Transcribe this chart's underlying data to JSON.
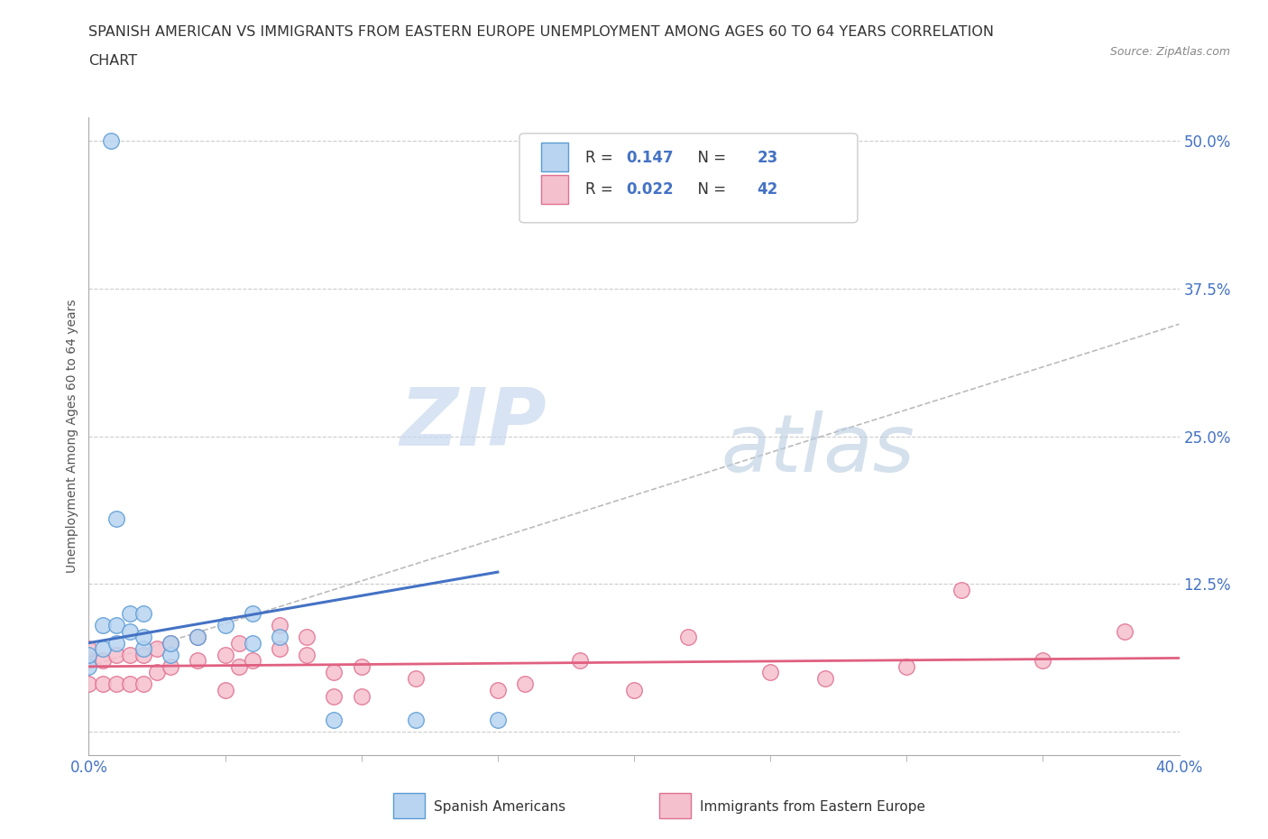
{
  "title_line1": "SPANISH AMERICAN VS IMMIGRANTS FROM EASTERN EUROPE UNEMPLOYMENT AMONG AGES 60 TO 64 YEARS CORRELATION",
  "title_line2": "CHART",
  "source": "Source: ZipAtlas.com",
  "ylabel": "Unemployment Among Ages 60 to 64 years",
  "xlim": [
    0.0,
    0.4
  ],
  "ylim": [
    -0.02,
    0.52
  ],
  "xticklabels": [
    "0.0%",
    "40.0%"
  ],
  "ytick_values": [
    0.0,
    0.125,
    0.25,
    0.375,
    0.5
  ],
  "ytick_labels": [
    "",
    "12.5%",
    "25.0%",
    "37.5%",
    "50.0%"
  ],
  "blue_R": "0.147",
  "blue_N": "23",
  "pink_R": "0.022",
  "pink_N": "42",
  "blue_fill": "#b8d4f0",
  "blue_edge": "#5b9bd5",
  "pink_fill": "#f5c0ce",
  "pink_edge": "#e07090",
  "blue_line": "#4472c4",
  "pink_line": "#e06080",
  "dash_line": "#aaaaaa",
  "grid_color": "#cccccc",
  "watermark_zip": "ZIP",
  "watermark_atlas": "atlas",
  "blue_scatter_x": [
    0.008,
    0.01,
    0.0,
    0.0,
    0.005,
    0.005,
    0.01,
    0.01,
    0.015,
    0.015,
    0.02,
    0.02,
    0.02,
    0.03,
    0.03,
    0.04,
    0.05,
    0.06,
    0.06,
    0.07,
    0.09,
    0.12,
    0.15
  ],
  "blue_scatter_y": [
    0.5,
    0.18,
    0.055,
    0.065,
    0.07,
    0.09,
    0.075,
    0.09,
    0.085,
    0.1,
    0.07,
    0.08,
    0.1,
    0.065,
    0.075,
    0.08,
    0.09,
    0.075,
    0.1,
    0.08,
    0.01,
    0.01,
    0.01
  ],
  "pink_scatter_x": [
    0.0,
    0.0,
    0.0,
    0.005,
    0.005,
    0.01,
    0.01,
    0.015,
    0.015,
    0.02,
    0.02,
    0.025,
    0.025,
    0.03,
    0.03,
    0.04,
    0.04,
    0.05,
    0.05,
    0.055,
    0.055,
    0.06,
    0.07,
    0.07,
    0.08,
    0.08,
    0.09,
    0.09,
    0.1,
    0.1,
    0.12,
    0.15,
    0.16,
    0.18,
    0.2,
    0.22,
    0.25,
    0.27,
    0.3,
    0.32,
    0.35,
    0.38
  ],
  "pink_scatter_y": [
    0.04,
    0.06,
    0.07,
    0.04,
    0.06,
    0.04,
    0.065,
    0.04,
    0.065,
    0.04,
    0.065,
    0.05,
    0.07,
    0.055,
    0.075,
    0.06,
    0.08,
    0.035,
    0.065,
    0.055,
    0.075,
    0.06,
    0.07,
    0.09,
    0.065,
    0.08,
    0.03,
    0.05,
    0.03,
    0.055,
    0.045,
    0.035,
    0.04,
    0.06,
    0.035,
    0.08,
    0.05,
    0.045,
    0.055,
    0.12,
    0.06,
    0.085
  ],
  "figsize": [
    14.06,
    9.3
  ],
  "dpi": 100
}
